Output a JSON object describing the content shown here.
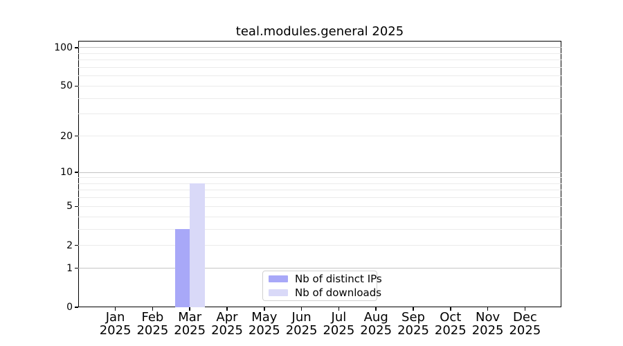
{
  "chart_data": {
    "type": "bar",
    "title": "teal.modules.general 2025",
    "year": "2025",
    "months": [
      "Jan",
      "Feb",
      "Mar",
      "Apr",
      "May",
      "Jun",
      "Jul",
      "Aug",
      "Sep",
      "Oct",
      "Nov",
      "Dec"
    ],
    "series": [
      {
        "name": "Nb of distinct IPs",
        "color": "#a8a8f8",
        "values": [
          0,
          0,
          3,
          0,
          0,
          0,
          0,
          0,
          0,
          0,
          0,
          0
        ]
      },
      {
        "name": "Nb of downloads",
        "color": "#d9d9f8",
        "values": [
          0,
          0,
          8,
          0,
          0,
          0,
          0,
          0,
          0,
          0,
          0,
          0
        ]
      }
    ],
    "y_axis": {
      "scale": "log10(1+x)",
      "ticks": [
        0,
        1,
        2,
        5,
        10,
        20,
        50,
        100
      ],
      "ylim": [
        0,
        113
      ],
      "major_gridlines": [
        1,
        10,
        100
      ],
      "minor_gridlines": [
        2,
        3,
        4,
        5,
        6,
        7,
        8,
        9,
        20,
        30,
        40,
        50,
        60,
        70,
        80,
        90
      ]
    },
    "x_axis": {
      "tick_label_format": "month over year, two lines"
    },
    "legend": {
      "position": "bottom-center",
      "entries": [
        "Nb of distinct IPs",
        "Nb of downloads"
      ]
    },
    "colors": {
      "major_grid": "#c4c4c4",
      "minor_grid": "#ebebeb",
      "spine": "#000000",
      "text": "#000000"
    },
    "grid": "horizontal"
  }
}
